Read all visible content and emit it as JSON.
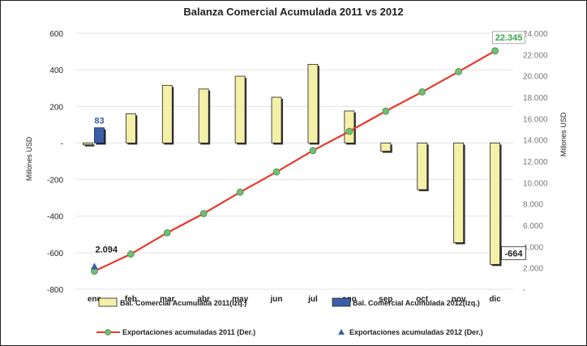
{
  "chart_data": {
    "type": "bar",
    "title": "Balanza Comercial Acumulada 2011 vs 2012",
    "ylabel_left": "Millones USD",
    "ylabel_right": "Millones USD",
    "categories": [
      "ene",
      "feb",
      "mar",
      "abr",
      "may",
      "jun",
      "jul",
      "ago",
      "sep",
      "oct",
      "nov",
      "dic"
    ],
    "ylim_left": [
      -800,
      600
    ],
    "yticks_left": [
      600,
      400,
      200,
      0,
      -200,
      -400,
      -600,
      -800
    ],
    "ytick_labels_left": [
      "600",
      "400",
      "200",
      "-",
      "-200",
      "-400",
      "-600",
      "-800"
    ],
    "ylim_right": [
      0,
      24000
    ],
    "yticks_right": [
      24000,
      22000,
      20000,
      18000,
      16000,
      14000,
      12000,
      10000,
      8000,
      6000,
      4000,
      2000,
      0
    ],
    "ytick_labels_right": [
      "24.000",
      "22.000",
      "20.000",
      "18.000",
      "16.000",
      "14.000",
      "12.000",
      "10.000",
      "8.000",
      "6.000",
      "4.000",
      "2.000",
      "-"
    ],
    "grid": true,
    "legend_position": "bottom",
    "series": [
      {
        "name": "Bal. Comercial Acumulada 2011(Izq.)",
        "type": "bar",
        "axis": "left",
        "color": "#f5f0a8",
        "values": [
          -10,
          160,
          315,
          295,
          365,
          250,
          430,
          175,
          -45,
          -255,
          -545,
          -664
        ]
      },
      {
        "name": "Bal. Comercial Acumulada 2012(Izq.)",
        "type": "bar",
        "axis": "left",
        "color": "#3a5fa8",
        "values": [
          83,
          null,
          null,
          null,
          null,
          null,
          null,
          null,
          null,
          null,
          null,
          null
        ]
      },
      {
        "name": "Exportaciones acumuladas 2011 (Der.)",
        "type": "line",
        "axis": "right",
        "color": "#e8392b",
        "marker_color": "#6fbf73",
        "values": [
          1700,
          3300,
          5300,
          7100,
          9100,
          11000,
          13000,
          14800,
          16700,
          18500,
          20400,
          22345
        ]
      },
      {
        "name": "Exportaciones acumuladas 2012 (Der.)",
        "type": "marker",
        "axis": "right",
        "color": "#3a5fa8",
        "values": [
          2094,
          null,
          null,
          null,
          null,
          null,
          null,
          null,
          null,
          null,
          null,
          null
        ]
      }
    ],
    "annotations": [
      {
        "text": "83",
        "series": "Bal. Comercial Acumulada 2012(Izq.)",
        "category": "ene",
        "color": "#3a5fa8"
      },
      {
        "text": "2.094",
        "series": "Exportaciones acumuladas 2012 (Der.)",
        "category": "ene",
        "color": "#1f1f1f"
      },
      {
        "text": "-664",
        "series": "Bal. Comercial Acumulada 2011(Izq.)",
        "category": "dic",
        "color": "#1f1f1f"
      },
      {
        "text": "22.345",
        "series": "Exportaciones acumuladas 2011 (Der.)",
        "category": "dic",
        "color": "#3aa34a"
      }
    ]
  }
}
